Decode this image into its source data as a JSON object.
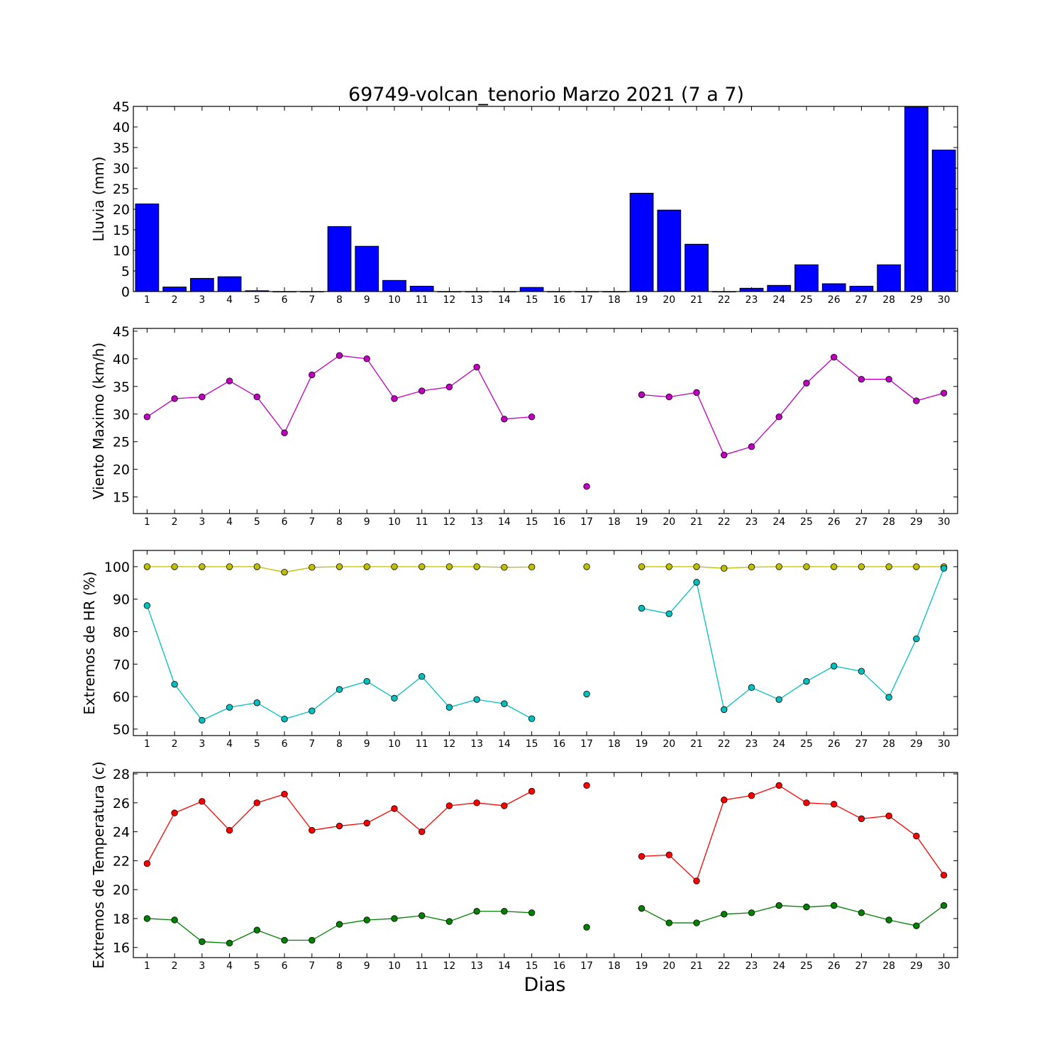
{
  "figure": {
    "title": "69749-volcan_tenorio Marzo 2021  (7 a 7)",
    "xlabel": "Dias"
  },
  "chart_data": [
    {
      "type": "bar",
      "ylabel": "Lluvia (mm)",
      "ylim": [
        0,
        45
      ],
      "yticks": [
        0,
        5,
        10,
        15,
        20,
        25,
        30,
        35,
        40,
        45
      ],
      "categories": [
        1,
        2,
        3,
        4,
        5,
        6,
        7,
        8,
        9,
        10,
        11,
        12,
        13,
        14,
        15,
        16,
        17,
        18,
        19,
        20,
        21,
        22,
        23,
        24,
        25,
        26,
        27,
        28,
        29,
        30
      ],
      "series": [
        {
          "color": "#0000ff",
          "values": [
            21.3,
            1.1,
            3.2,
            3.6,
            0.2,
            0.0,
            0.0,
            15.8,
            11.0,
            2.7,
            1.3,
            0.0,
            0.0,
            0.0,
            1.0,
            0.0,
            0.0,
            0.0,
            23.9,
            19.8,
            11.5,
            0.0,
            0.8,
            1.5,
            6.5,
            1.9,
            1.3,
            6.5,
            44.9,
            34.4
          ]
        }
      ]
    },
    {
      "type": "line",
      "ylabel": "Viento Maximo (km/h)",
      "ylim": [
        12,
        45.5
      ],
      "yticks": [
        15,
        20,
        25,
        30,
        35,
        40,
        45
      ],
      "x": [
        1,
        2,
        3,
        4,
        5,
        6,
        7,
        8,
        9,
        10,
        11,
        12,
        13,
        14,
        15,
        16,
        17,
        18,
        19,
        20,
        21,
        22,
        23,
        24,
        25,
        26,
        27,
        28,
        29,
        30
      ],
      "series": [
        {
          "color": "#bf00bf",
          "values": [
            29.5,
            32.8,
            33.1,
            36.0,
            33.1,
            26.6,
            37.1,
            40.6,
            40.0,
            32.8,
            34.2,
            34.9,
            38.5,
            29.1,
            29.5,
            null,
            16.9,
            null,
            33.5,
            33.1,
            33.9,
            22.6,
            24.1,
            29.5,
            35.6,
            40.3,
            36.3,
            36.3,
            32.4,
            33.8
          ]
        }
      ]
    },
    {
      "type": "line",
      "ylabel": "Extremos de HR (%)",
      "ylim": [
        48,
        105
      ],
      "yticks": [
        50,
        60,
        70,
        80,
        90,
        100
      ],
      "x": [
        1,
        2,
        3,
        4,
        5,
        6,
        7,
        8,
        9,
        10,
        11,
        12,
        13,
        14,
        15,
        16,
        17,
        18,
        19,
        20,
        21,
        22,
        23,
        24,
        25,
        26,
        27,
        28,
        29,
        30
      ],
      "series": [
        {
          "color": "#bfbf00",
          "values": [
            100,
            100,
            100,
            100,
            100,
            98.3,
            99.8,
            100,
            100,
            100,
            100,
            100,
            100,
            99.8,
            99.9,
            null,
            100,
            null,
            100,
            100,
            100,
            99.5,
            99.9,
            100,
            100,
            100,
            100,
            100,
            100,
            100
          ]
        },
        {
          "color": "#00bfbf",
          "values": [
            88.0,
            63.8,
            52.7,
            56.7,
            58.1,
            53.1,
            55.6,
            62.2,
            64.7,
            59.5,
            66.2,
            56.7,
            59.1,
            57.8,
            53.2,
            null,
            60.8,
            null,
            87.2,
            85.5,
            95.2,
            56.0,
            62.8,
            59.1,
            64.7,
            69.4,
            67.8,
            59.8,
            77.8,
            99.5
          ]
        }
      ]
    },
    {
      "type": "line",
      "ylabel": "Extremos de Temperatura (c)",
      "ylim": [
        15.3,
        28.1
      ],
      "yticks": [
        16,
        18,
        20,
        22,
        24,
        26,
        28
      ],
      "x": [
        1,
        2,
        3,
        4,
        5,
        6,
        7,
        8,
        9,
        10,
        11,
        12,
        13,
        14,
        15,
        16,
        17,
        18,
        19,
        20,
        21,
        22,
        23,
        24,
        25,
        26,
        27,
        28,
        29,
        30
      ],
      "series": [
        {
          "color": "#ff0000",
          "values": [
            21.8,
            25.3,
            26.1,
            24.1,
            26.0,
            26.6,
            24.1,
            24.4,
            24.6,
            25.6,
            24.0,
            25.8,
            26.0,
            25.8,
            26.8,
            null,
            27.2,
            null,
            22.3,
            22.4,
            20.6,
            26.2,
            26.5,
            27.2,
            26.0,
            25.9,
            24.9,
            25.1,
            23.7,
            21.0
          ]
        },
        {
          "color": "#008000",
          "values": [
            18.0,
            17.9,
            16.4,
            16.3,
            17.2,
            16.5,
            16.5,
            17.6,
            17.9,
            18.0,
            18.2,
            17.8,
            18.5,
            18.5,
            18.4,
            null,
            17.4,
            null,
            18.7,
            17.7,
            17.7,
            18.3,
            18.4,
            18.9,
            18.8,
            18.9,
            18.4,
            17.9,
            17.5,
            18.9
          ]
        }
      ]
    }
  ]
}
